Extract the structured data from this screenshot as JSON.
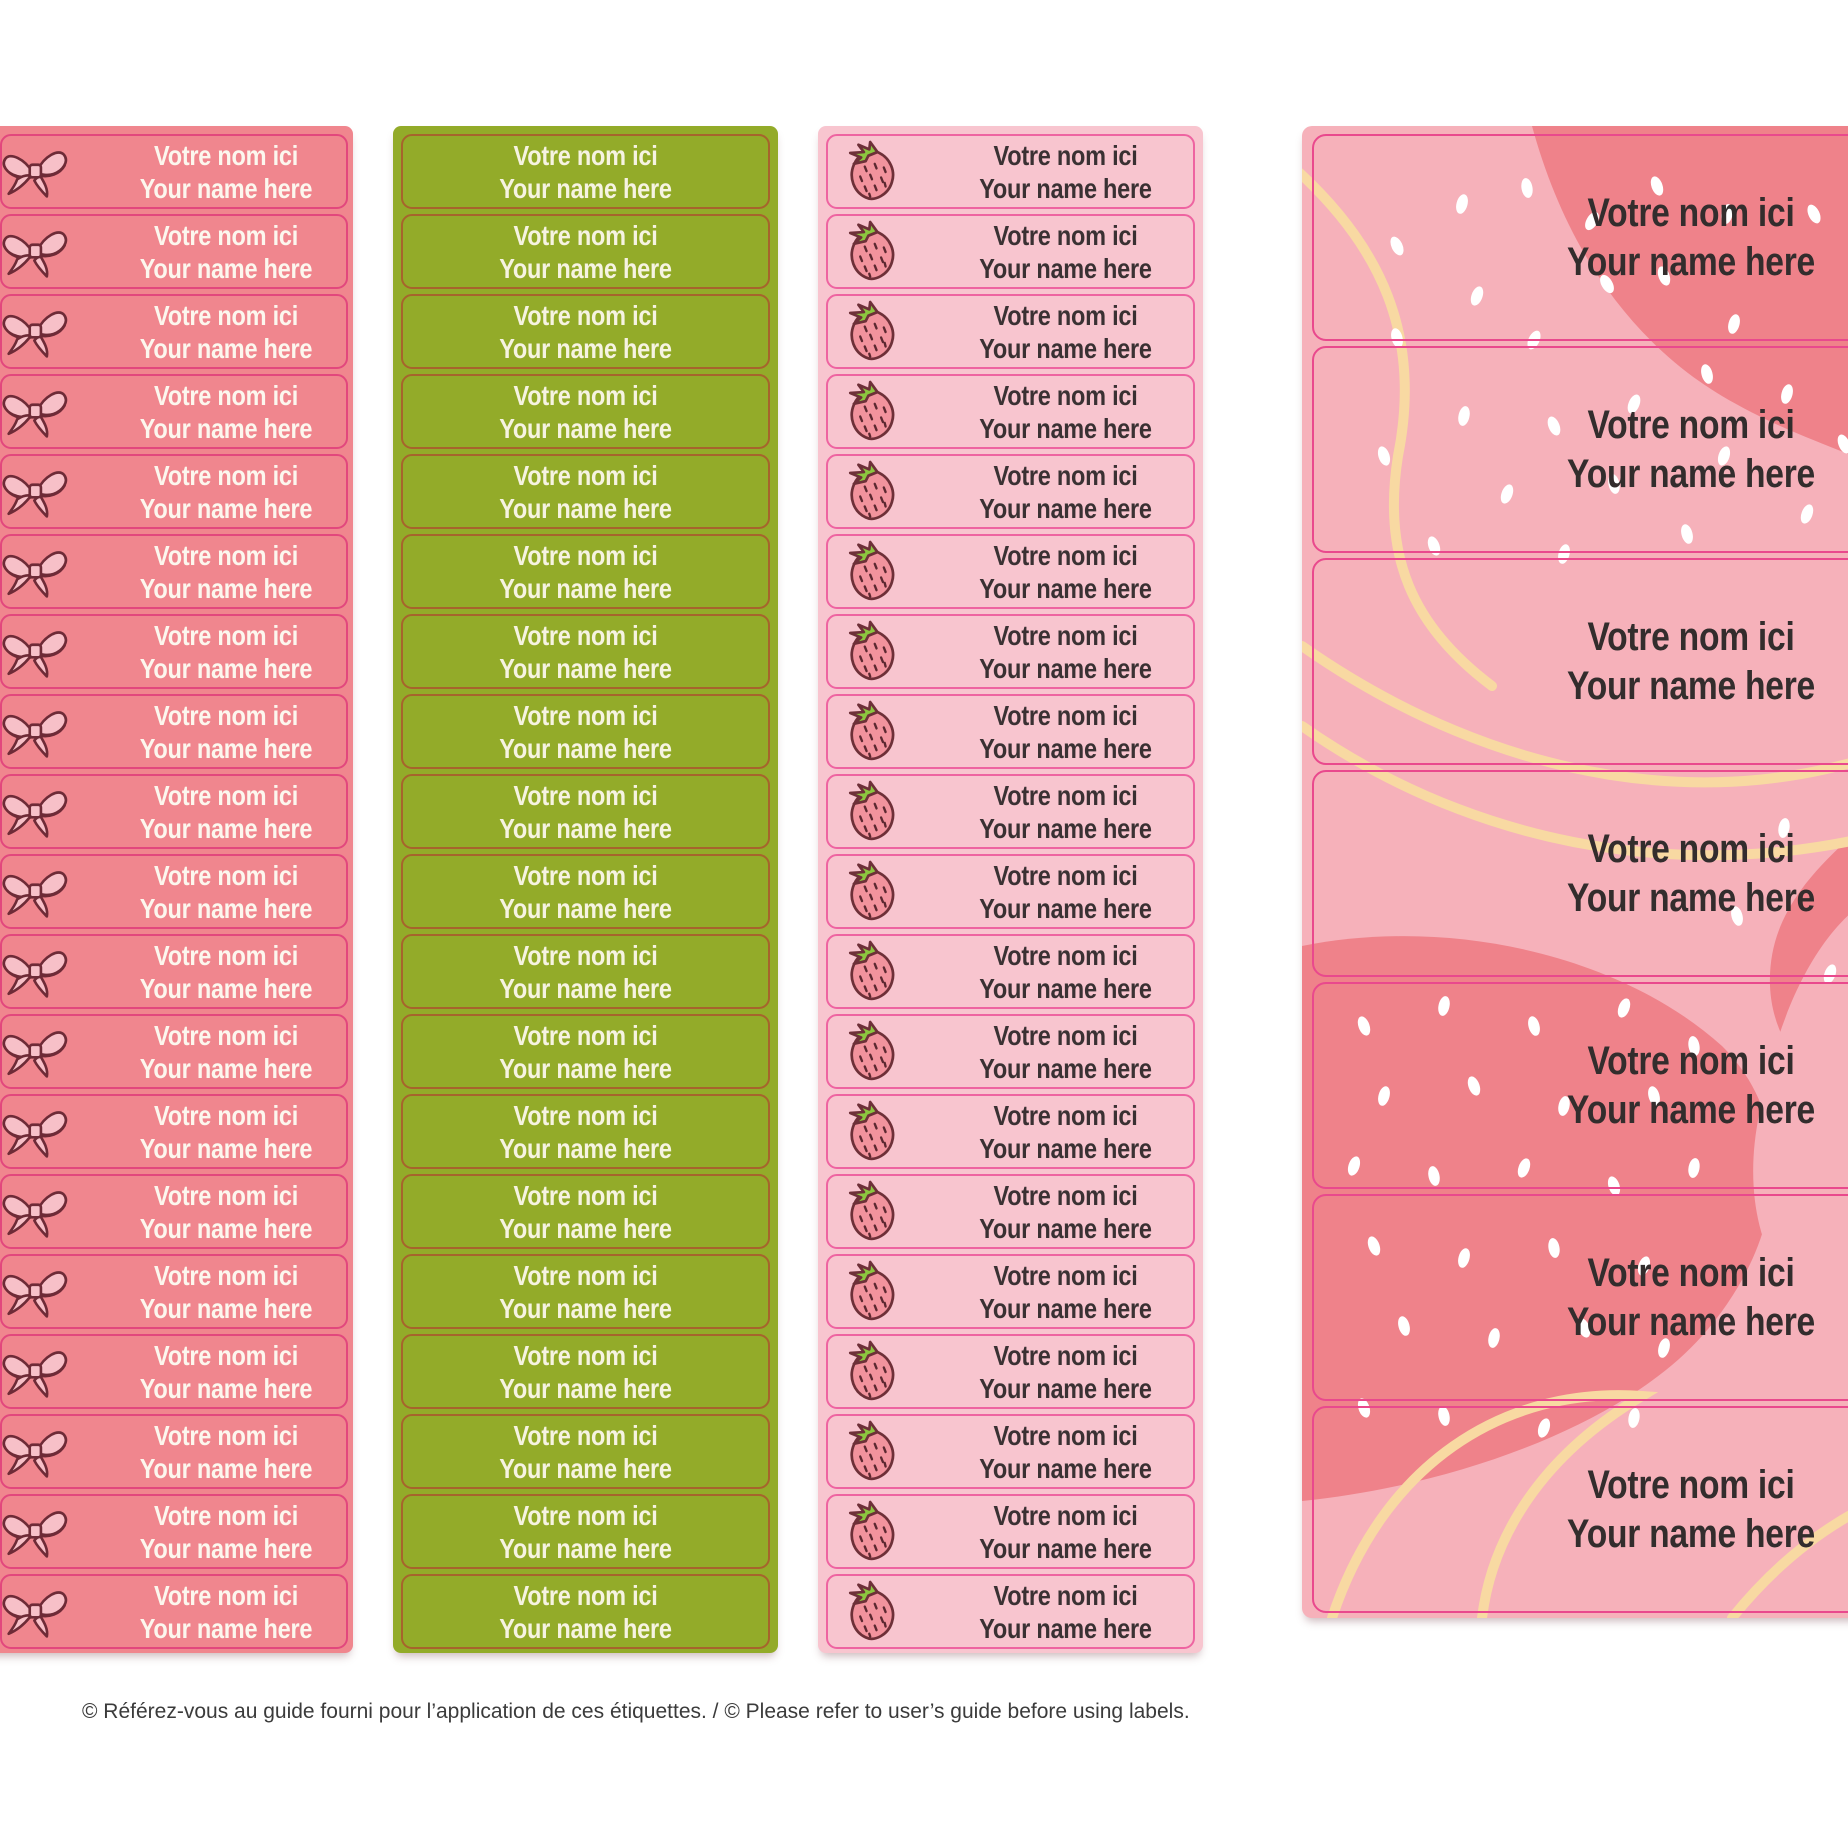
{
  "label": {
    "line1": "Votre nom ici",
    "line2": "Your name here"
  },
  "sheets": [
    {
      "name": "bow-labels-sheet",
      "icon": "bow-icon",
      "label_count": 19,
      "fill": "#f0868e",
      "border_color": "#e2477d",
      "text_color": "#fcf7ee"
    },
    {
      "name": "green-labels-sheet",
      "icon": null,
      "label_count": 19,
      "fill": "#93ab29",
      "border_color": "#a6642c",
      "text_color": "#f6f3e1"
    },
    {
      "name": "strawberry-labels-sheet",
      "icon": "strawberry-icon",
      "label_count": 19,
      "fill": "#f8c5cf",
      "border_color": "#ee64a1",
      "text_color": "#3a3133"
    },
    {
      "name": "abstract-large-labels-sheet",
      "icon": null,
      "label_count": 7,
      "fill": "#f6b1ba",
      "border_color": "#e9498d",
      "text_color": "#332d2d",
      "pattern_colors": {
        "dark": "#ef828a",
        "light": "#f6b1ba",
        "line": "#f8d9a2",
        "dots": "#ffffff"
      }
    }
  ],
  "footer": {
    "text": "© Référez-vous au guide fourni pour l’application de ces étiquettes. / © Please refer to user’s guide before using labels."
  }
}
